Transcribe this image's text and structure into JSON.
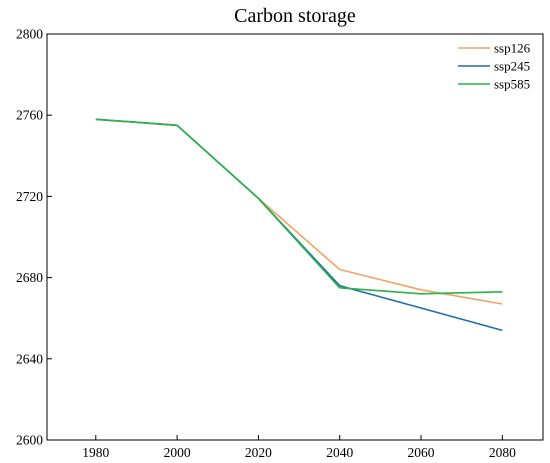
{
  "chart_data": {
    "type": "line",
    "title": "Carbon storage",
    "xlabel": "",
    "ylabel": "",
    "x": [
      1980,
      2000,
      2020,
      2040,
      2060,
      2080
    ],
    "xticks": [
      1980,
      2000,
      2020,
      2040,
      2060,
      2080
    ],
    "yticks": [
      2600,
      2640,
      2680,
      2720,
      2760,
      2800
    ],
    "xlim": [
      1968,
      2090
    ],
    "ylim": [
      2600,
      2800
    ],
    "grid": false,
    "legend_position": "top-right",
    "series": [
      {
        "name": "ssp126",
        "color": "#f4a261",
        "values": [
          2758,
          2755,
          2719,
          2684,
          2674,
          2667
        ]
      },
      {
        "name": "ssp245",
        "color": "#1f6fa8",
        "values": [
          2758,
          2755,
          2719,
          2676,
          2665,
          2654
        ]
      },
      {
        "name": "ssp585",
        "color": "#2ab24a",
        "values": [
          2758,
          2755,
          2719,
          2675,
          2672,
          2673
        ]
      }
    ]
  }
}
